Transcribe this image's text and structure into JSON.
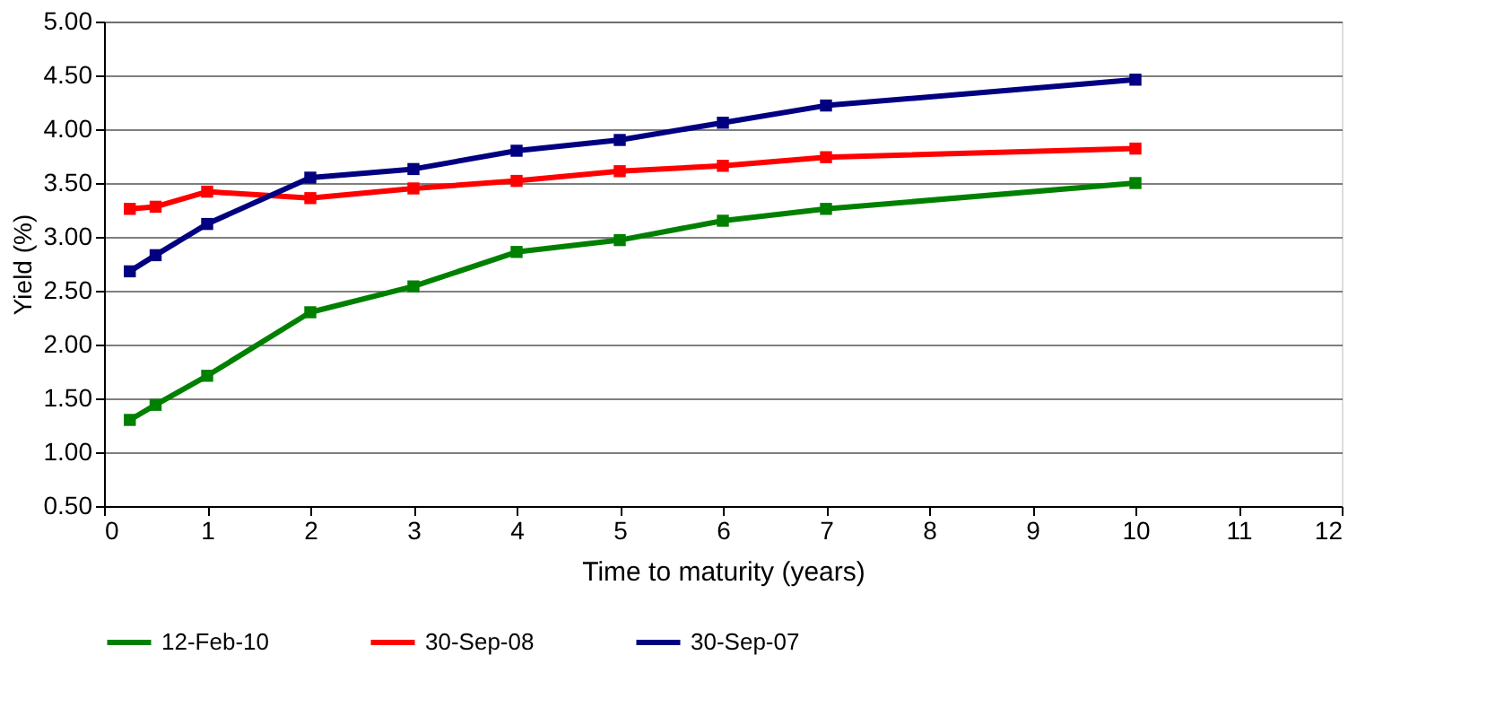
{
  "chart_data": {
    "type": "line",
    "xlabel": "Time to maturity (years)",
    "ylabel": "Yield (%)",
    "xlim": [
      0,
      12
    ],
    "xticks": [
      0,
      1,
      2,
      3,
      4,
      5,
      6,
      7,
      8,
      9,
      10,
      11,
      12
    ],
    "ylim": [
      0.5,
      5.0
    ],
    "yticks": [
      {
        "value": 0.5,
        "label": "0.50"
      },
      {
        "value": 1.0,
        "label": "1.00"
      },
      {
        "value": 1.5,
        "label": "1.50"
      },
      {
        "value": 2.0,
        "label": "2.00"
      },
      {
        "value": 2.5,
        "label": "2.50"
      },
      {
        "value": 3.0,
        "label": "3.00"
      },
      {
        "value": 3.5,
        "label": "3.50"
      },
      {
        "value": 4.0,
        "label": "4.00"
      },
      {
        "value": 4.5,
        "label": "4.50"
      },
      {
        "value": 5.0,
        "label": "5.00"
      }
    ],
    "x": [
      0.25,
      0.5,
      1,
      2,
      3,
      4,
      5,
      6,
      7,
      10
    ],
    "series": [
      {
        "name": "12-Feb-10",
        "color": "#008000",
        "values": [
          1.3,
          1.44,
          1.71,
          2.3,
          2.54,
          2.86,
          2.97,
          3.15,
          3.26,
          3.5
        ]
      },
      {
        "name": "30-Sep-08",
        "color": "#ff0000",
        "values": [
          3.26,
          3.28,
          3.42,
          3.36,
          3.45,
          3.52,
          3.61,
          3.66,
          3.74,
          3.82
        ]
      },
      {
        "name": "30-Sep-07",
        "color": "#000080",
        "values": [
          2.68,
          2.83,
          3.12,
          3.55,
          3.63,
          3.8,
          3.9,
          4.06,
          4.22,
          4.46
        ]
      }
    ],
    "grid": "y",
    "legend": "bottom",
    "marker": "square",
    "line_style": "solid"
  }
}
